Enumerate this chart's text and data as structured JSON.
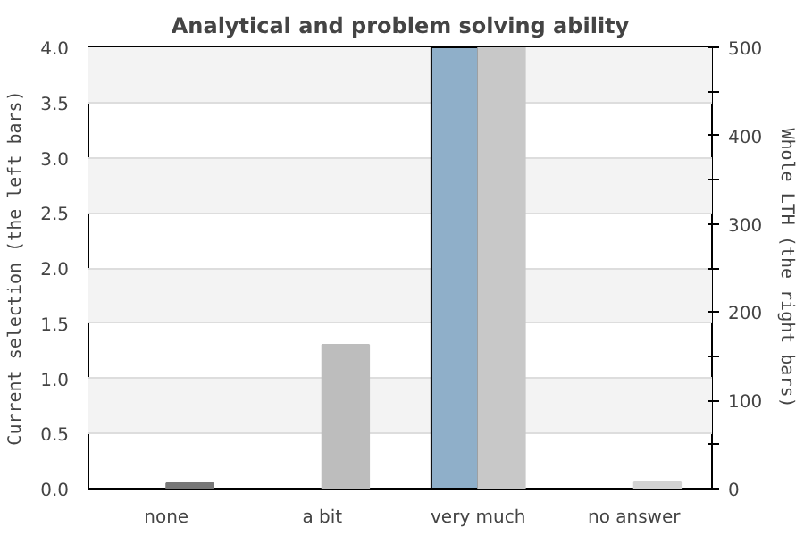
{
  "chart_data": {
    "type": "bar",
    "title": "Analytical and problem solving ability",
    "ylabel": "Current selection (the left bars)",
    "y2label": "Whole LTH (the right bars)",
    "categories": [
      "none",
      "a bit",
      "very much",
      "no answer"
    ],
    "series": [
      {
        "color": "#8fafc9",
        "values": [
          0,
          0,
          4.0,
          0
        ]
      },
      {
        "color": "#c8c8c8",
        "colors": [
          "#777777",
          "#bdbdbd",
          "#c8c8c8",
          "#d3d3d3"
        ],
        "values": [
          6,
          163,
          500,
          8
        ],
        "axis": "y2"
      }
    ],
    "ylim": [
      0,
      4.0
    ],
    "yticks": [
      {
        "value": 0,
        "label": "0.0"
      },
      0.5,
      {
        "value": 1,
        "label": "1.0"
      },
      1.5,
      {
        "value": 2,
        "label": "2.0"
      },
      2.5,
      {
        "value": 3,
        "label": "3.0"
      },
      3.5,
      {
        "value": 4,
        "label": "4.0"
      }
    ],
    "y2lim": [
      0,
      500
    ],
    "y2ticks": [
      0,
      {
        "value": 50,
        "label": null
      },
      100,
      {
        "value": 150,
        "label": null
      },
      200,
      {
        "value": 250,
        "label": null
      },
      300,
      {
        "value": 350,
        "label": null
      },
      400,
      {
        "value": 450,
        "label": null
      },
      500
    ],
    "grid": "y"
  }
}
